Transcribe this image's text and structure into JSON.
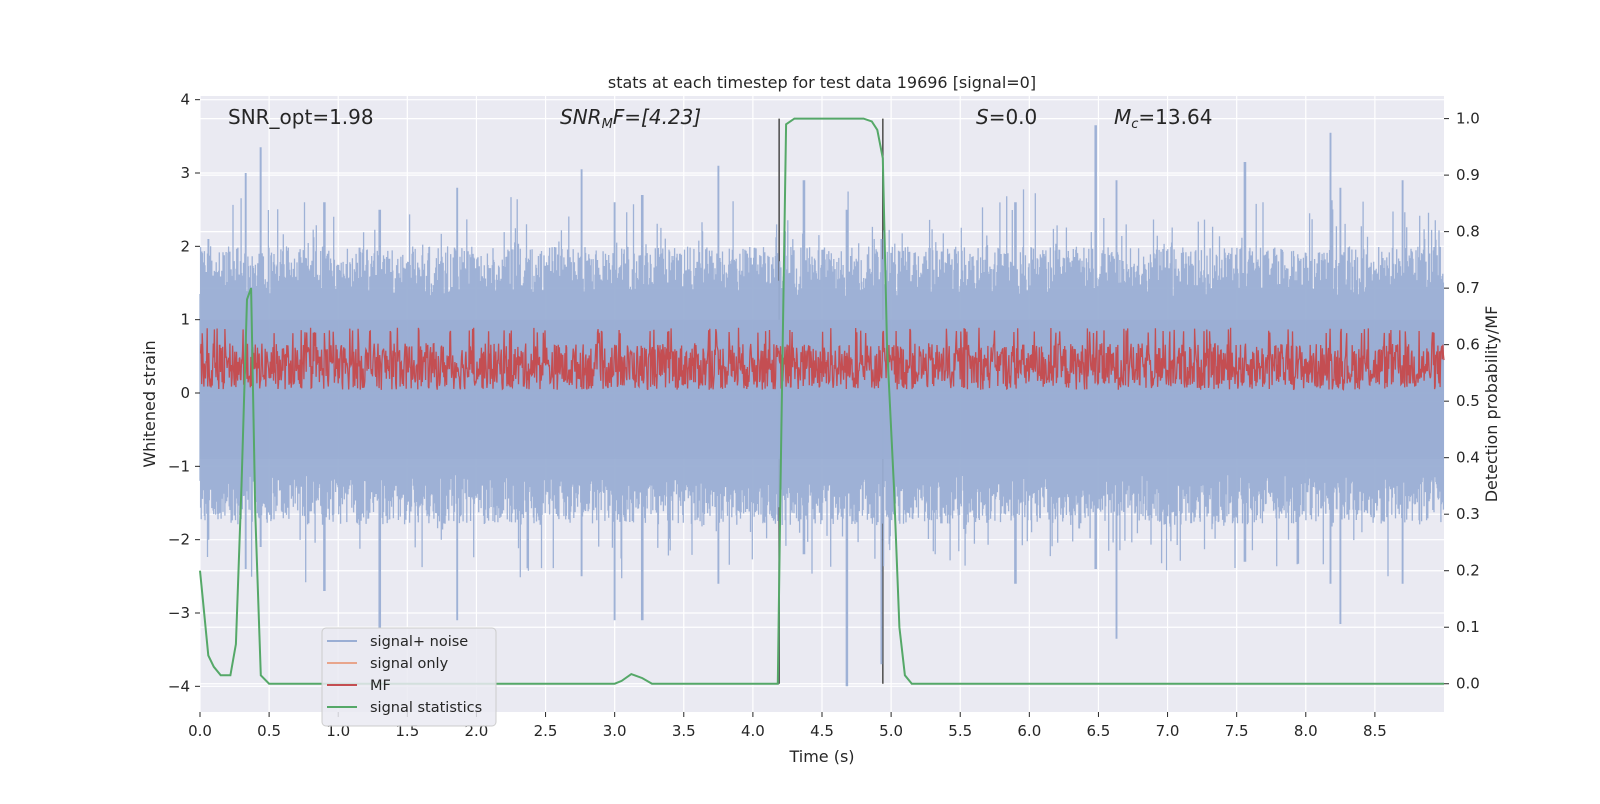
{
  "chart_data": {
    "type": "line",
    "title": "stats at each timestep for test data 19696 [signal=0]",
    "xlabel": "Time (s)",
    "ylabel": "Whitened strain",
    "ylabel_right": "Detection probability/MF",
    "xlim": [
      0.0,
      9.0
    ],
    "ylim": [
      -4.35,
      4.05
    ],
    "ylim_right": [
      -0.05,
      1.04
    ],
    "x_ticks": [
      "0.0",
      "0.5",
      "1.0",
      "1.5",
      "2.0",
      "2.5",
      "3.0",
      "3.5",
      "4.0",
      "4.5",
      "5.0",
      "5.5",
      "6.0",
      "6.5",
      "7.0",
      "7.5",
      "8.0",
      "8.5"
    ],
    "y_ticks": [
      "4",
      "3",
      "2",
      "1",
      "0",
      "−1",
      "−2",
      "−3",
      "−4"
    ],
    "y_right_ticks": [
      "1.0",
      "0.9",
      "0.8",
      "0.7",
      "0.6",
      "0.5",
      "0.4",
      "0.3",
      "0.2",
      "0.1",
      "0.0"
    ],
    "grid": true,
    "legend_position": "lower-left",
    "annotations": {
      "snr_opt": "SNR_opt=1.98",
      "snr_mf_main": "SNR",
      "snr_mf_sub": "M",
      "snr_mf_rest": "F=[4.23]",
      "s_main": "S",
      "s_rest": "=0.0",
      "mc_main": "M",
      "mc_sub": "c",
      "mc_rest": "=13.64"
    },
    "vlines": [
      4.19,
      4.94
    ],
    "series": [
      {
        "name": "signal+ noise",
        "color": "#9aaed4",
        "axis": "left",
        "description_range": [
          -4.0,
          3.65
        ],
        "envelope_peaks": [
          [
            0.06,
            2.1,
            -2.0
          ],
          [
            0.33,
            3.0,
            -2.4
          ],
          [
            0.44,
            3.35,
            -2.1
          ],
          [
            0.9,
            2.6,
            -2.7
          ],
          [
            1.3,
            2.5,
            -3.2
          ],
          [
            1.86,
            2.8,
            -3.1
          ],
          [
            2.76,
            3.05,
            -2.5
          ],
          [
            3.0,
            2.6,
            -3.1
          ],
          [
            3.2,
            2.7,
            -3.1
          ],
          [
            3.75,
            3.1,
            -2.6
          ],
          [
            4.37,
            2.9,
            -2.2
          ],
          [
            4.68,
            2.5,
            -4.0
          ],
          [
            4.93,
            2.1,
            -3.7
          ],
          [
            5.9,
            2.6,
            -2.6
          ],
          [
            6.48,
            3.65,
            -2.4
          ],
          [
            6.63,
            2.9,
            -3.35
          ],
          [
            7.56,
            3.15,
            -2.3
          ],
          [
            8.18,
            3.55,
            -2.6
          ],
          [
            8.25,
            2.8,
            -3.15
          ],
          [
            8.7,
            2.9,
            -2.6
          ]
        ]
      },
      {
        "name": "signal only",
        "color": "#e8a58c",
        "axis": "left",
        "values": []
      },
      {
        "name": "MF",
        "color": "#c44e52",
        "axis": "right",
        "range": [
          0.52,
          0.63
        ]
      },
      {
        "name": "signal statistics",
        "color": "#55a868",
        "axis": "right",
        "x": [
          0.0,
          0.02,
          0.06,
          0.1,
          0.15,
          0.22,
          0.26,
          0.3,
          0.34,
          0.37,
          0.4,
          0.44,
          0.5,
          1.0,
          2.0,
          3.0,
          3.05,
          3.12,
          3.2,
          3.27,
          3.5,
          4.0,
          4.15,
          4.18,
          4.2,
          4.24,
          4.3,
          4.5,
          4.7,
          4.8,
          4.86,
          4.9,
          4.94,
          4.97,
          5.02,
          5.06,
          5.1,
          5.15,
          5.5,
          6.0,
          7.0,
          8.0,
          9.0
        ],
        "y": [
          0.2,
          0.15,
          0.05,
          0.03,
          0.015,
          0.015,
          0.07,
          0.35,
          0.68,
          0.7,
          0.3,
          0.015,
          0.0,
          0.0,
          0.0,
          0.0,
          0.005,
          0.017,
          0.01,
          0.0,
          0.0,
          0.0,
          0.0,
          0.0,
          0.35,
          0.99,
          1.0,
          1.0,
          1.0,
          1.0,
          0.995,
          0.98,
          0.93,
          0.6,
          0.35,
          0.1,
          0.015,
          0.0,
          0.0,
          0.0,
          0.0,
          0.0,
          0.0
        ]
      }
    ]
  }
}
